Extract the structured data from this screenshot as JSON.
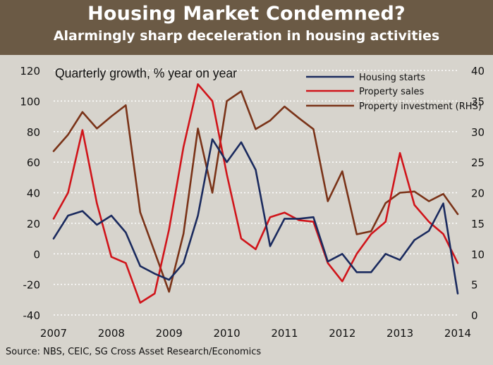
{
  "header": {
    "title": "Housing Market Condemned?",
    "subtitle": "Alarmingly sharp deceleration in housing activities"
  },
  "source": "Source: NBS, CEIC, SG Cross Asset Research/Economics",
  "colors": {
    "header_bg": "#6b5a45",
    "housing_starts": "#1a2a5e",
    "property_sales": "#d0141a",
    "property_investment": "#7a3318"
  },
  "chart_data": {
    "type": "line",
    "title": "Quarterly growth, % year on year",
    "x_ticks": [
      "2007",
      "2008",
      "2009",
      "2010",
      "2011",
      "2012",
      "2013",
      "2014"
    ],
    "x_range": [
      2007.0,
      2014.0
    ],
    "y_left_range": [
      -40,
      120
    ],
    "y_left_ticks": [
      -40,
      -20,
      0,
      20,
      40,
      60,
      80,
      100,
      120
    ],
    "y_right_range": [
      0,
      40
    ],
    "y_right_ticks": [
      0,
      5,
      10,
      15,
      20,
      25,
      30,
      35,
      40
    ],
    "grid": "horizontal dotted",
    "legend_position": "top-right",
    "series": [
      {
        "name": "Housing starts",
        "axis": "left",
        "color": "#1a2a5e",
        "x": [
          2007.0,
          2007.25,
          2007.5,
          2007.75,
          2008.0,
          2008.25,
          2008.5,
          2008.75,
          2009.0,
          2009.25,
          2009.5,
          2009.75,
          2010.0,
          2010.25,
          2010.5,
          2010.75,
          2011.0,
          2011.25,
          2011.5,
          2011.75,
          2012.0,
          2012.25,
          2012.5,
          2012.75,
          2013.0,
          2013.25,
          2013.5,
          2013.75,
          2014.0
        ],
        "y": [
          10,
          25,
          28,
          19,
          25,
          14,
          -8,
          -13,
          -17,
          -6,
          25,
          75,
          60,
          73,
          55,
          5,
          23,
          23,
          24,
          -5,
          0,
          -12,
          -12,
          0,
          -4,
          9,
          15,
          33,
          -26
        ]
      },
      {
        "name": "Property sales",
        "axis": "left",
        "color": "#d0141a",
        "x": [
          2007.0,
          2007.25,
          2007.5,
          2007.75,
          2008.0,
          2008.25,
          2008.5,
          2008.75,
          2009.0,
          2009.25,
          2009.5,
          2009.75,
          2010.0,
          2010.25,
          2010.5,
          2010.75,
          2011.0,
          2011.25,
          2011.5,
          2011.75,
          2012.0,
          2012.25,
          2012.5,
          2012.75,
          2013.0,
          2013.25,
          2013.5,
          2013.75,
          2014.0
        ],
        "y": [
          23,
          40,
          81,
          33,
          -2,
          -6,
          -32,
          -26,
          16,
          70,
          111,
          100,
          52,
          10,
          3,
          24,
          27,
          22,
          21,
          -6,
          -18,
          0,
          13,
          21,
          66,
          32,
          21,
          13,
          -6
        ]
      },
      {
        "name": "Property investment (RHS)",
        "axis": "right",
        "color": "#7a3318",
        "x": [
          2007.0,
          2007.25,
          2007.5,
          2007.75,
          2008.0,
          2008.25,
          2008.5,
          2008.75,
          2009.0,
          2009.25,
          2009.5,
          2009.75,
          2010.0,
          2010.25,
          2010.5,
          2010.75,
          2011.0,
          2011.25,
          2011.5,
          2011.75,
          2012.0,
          2012.25,
          2012.5,
          2012.75,
          2013.0,
          2013.25,
          2013.5,
          2013.75,
          2014.0
        ],
        "y": [
          26.8,
          29.5,
          33.2,
          30.5,
          32.5,
          34.3,
          16.8,
          10.3,
          3.8,
          13.3,
          30.5,
          20.0,
          35.0,
          36.6,
          30.4,
          31.8,
          34.1,
          32.2,
          30.4,
          18.6,
          23.5,
          13.2,
          13.7,
          18.3,
          20.0,
          20.2,
          18.6,
          19.8,
          16.5
        ]
      }
    ]
  }
}
